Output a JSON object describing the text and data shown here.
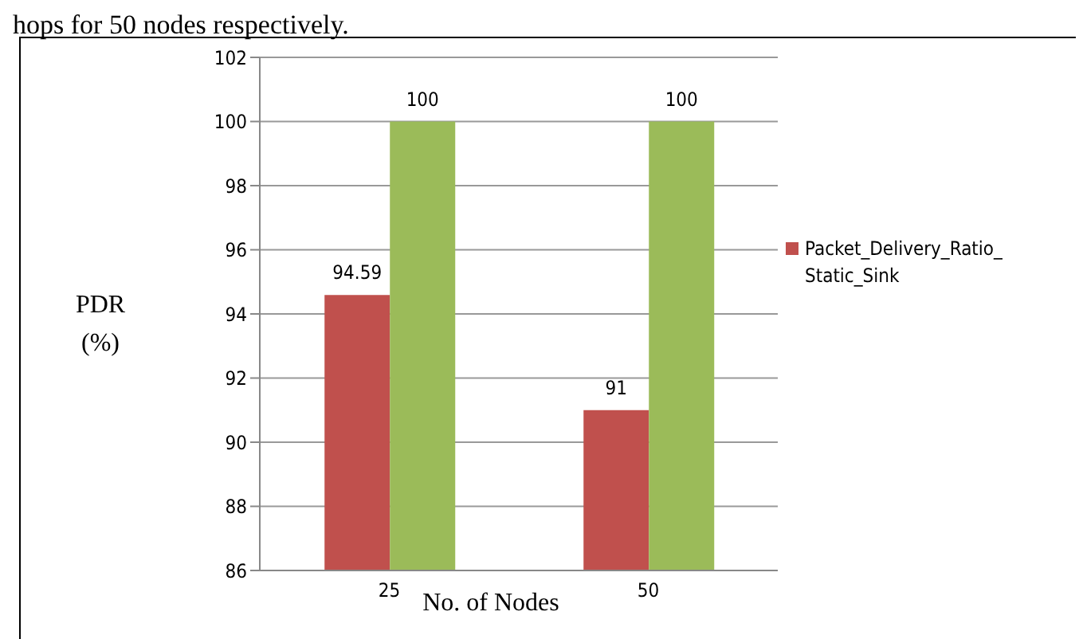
{
  "chart_data": {
    "type": "bar",
    "categories": [
      "25",
      "50"
    ],
    "series": [
      {
        "name": "Packet_Delivery_Ratio_Static_Sink",
        "color": "#c0504d",
        "values": [
          94.59,
          91
        ]
      },
      {
        "color": "#9bbb59",
        "values": [
          100,
          100
        ]
      }
    ],
    "xlabel": "No. of Nodes",
    "ylabel": "PDR (%)",
    "ylim": [
      86,
      102
    ],
    "yticks": [
      86,
      88,
      90,
      92,
      94,
      96,
      98,
      100,
      102
    ],
    "grid": "y",
    "legend": "right",
    "data_labels": true,
    "annotations": [
      "hops for 50 nodes respectively."
    ]
  }
}
